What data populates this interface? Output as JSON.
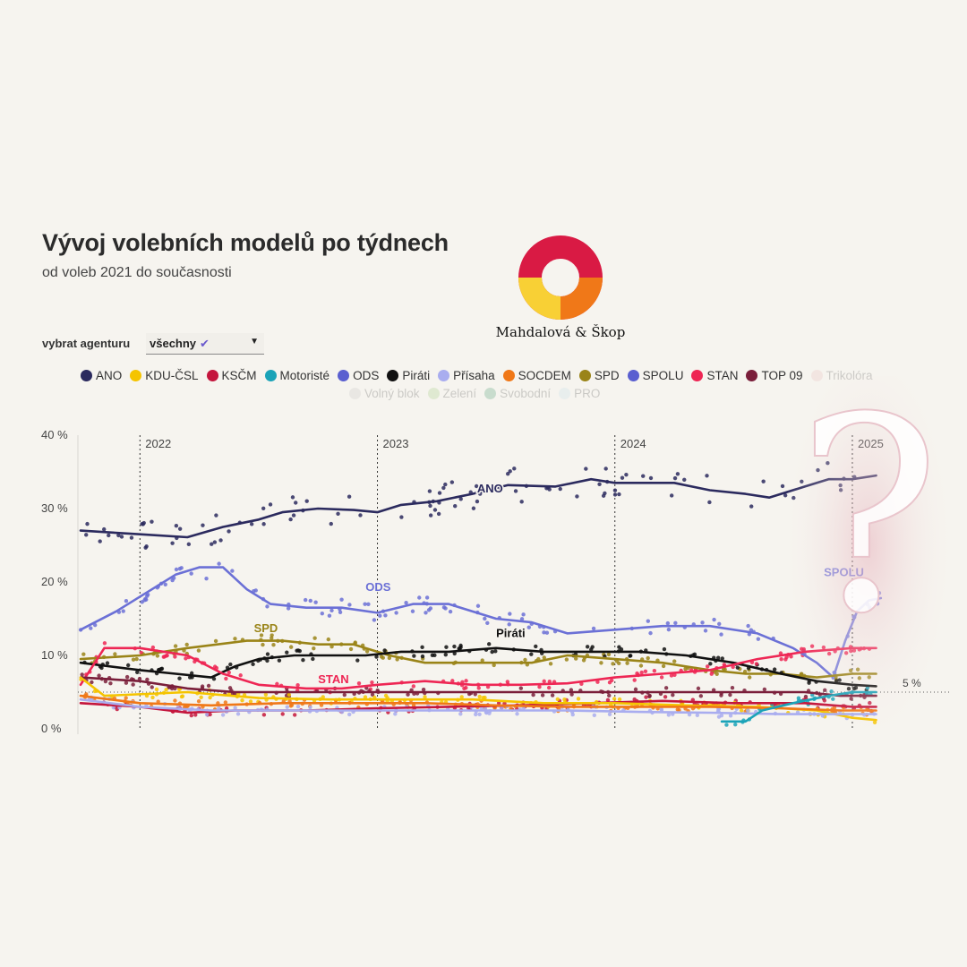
{
  "header": {
    "title": "Vývoj volebních modelů po týdnech",
    "subtitle": "od voleb 2021 do současnosti"
  },
  "brand": {
    "name": "Mahdalová & Škop"
  },
  "filter": {
    "label": "vybrat agenturu",
    "value": "všechny",
    "check_icon": "check-icon"
  },
  "legend": {
    "row1": [
      {
        "name": "ANO",
        "color": "#2b2a5e",
        "active": true
      },
      {
        "name": "KDU-ČSL",
        "color": "#f5c400",
        "active": true
      },
      {
        "name": "KSČM",
        "color": "#c4163d",
        "active": true
      },
      {
        "name": "Motoristé",
        "color": "#1ba3b8",
        "active": true
      },
      {
        "name": "ODS",
        "color": "#5a5fd0",
        "active": true
      },
      {
        "name": "Piráti",
        "color": "#111111",
        "active": true
      },
      {
        "name": "Přísaha",
        "color": "#a9adef",
        "active": true
      },
      {
        "name": "SOCDEM",
        "color": "#f07818",
        "active": true
      },
      {
        "name": "SPD",
        "color": "#9a8418",
        "active": true
      },
      {
        "name": "SPOLU",
        "color": "#5a5fd0",
        "active": true
      },
      {
        "name": "STAN",
        "color": "#ee2654",
        "active": true
      },
      {
        "name": "TOP 09",
        "color": "#7a1e3a",
        "active": true
      },
      {
        "name": "Trikolóra",
        "color": "#e8b4b4",
        "active": false
      }
    ],
    "row2": [
      {
        "name": "Volný blok",
        "color": "#bdbdbd",
        "active": false
      },
      {
        "name": "Zelení",
        "color": "#8fc46a",
        "active": false
      },
      {
        "name": "Svobodní",
        "color": "#2a8a5a",
        "active": false
      },
      {
        "name": "PRO",
        "color": "#b8dcea",
        "active": false
      }
    ]
  },
  "chart_data": {
    "type": "line",
    "x_range": [
      "2021-10-01",
      "2025-03-15"
    ],
    "ylim": [
      0,
      40
    ],
    "y_ticks": [
      "0 %",
      "10 %",
      "20 %",
      "30 %",
      "40 %"
    ],
    "year_markers": [
      {
        "label": "2022",
        "date": "2022-01-01"
      },
      {
        "label": "2023",
        "date": "2023-01-01"
      },
      {
        "label": "2024",
        "date": "2024-01-01"
      },
      {
        "label": "2025",
        "date": "2025-01-01"
      }
    ],
    "threshold": {
      "value": 5,
      "label": "5 %"
    },
    "series": [
      {
        "name": "ANO",
        "color": "#2b2a5e",
        "label": "ANO",
        "label_at": [
          2023.42,
          32.2
        ],
        "points": [
          [
            2021.75,
            27
          ],
          [
            2022.0,
            26.5
          ],
          [
            2022.2,
            26.1
          ],
          [
            2022.35,
            27.5
          ],
          [
            2022.5,
            28.5
          ],
          [
            2022.6,
            29.5
          ],
          [
            2022.75,
            30
          ],
          [
            2022.9,
            29.8
          ],
          [
            2023.0,
            29.5
          ],
          [
            2023.1,
            30.5
          ],
          [
            2023.25,
            31
          ],
          [
            2023.4,
            32
          ],
          [
            2023.55,
            33.2
          ],
          [
            2023.75,
            33
          ],
          [
            2023.9,
            34
          ],
          [
            2024.0,
            33.5
          ],
          [
            2024.25,
            33.5
          ],
          [
            2024.4,
            32.5
          ],
          [
            2024.55,
            32
          ],
          [
            2024.65,
            31.5
          ],
          [
            2024.8,
            33
          ],
          [
            2024.9,
            34
          ],
          [
            2025.0,
            34
          ],
          [
            2025.1,
            34.5
          ]
        ]
      },
      {
        "name": "ODS",
        "color": "#6b70d6",
        "label": "ODS",
        "label_at": [
          2022.95,
          18.8
        ],
        "points": [
          [
            2021.75,
            13.5
          ],
          [
            2021.9,
            16
          ],
          [
            2022.15,
            21
          ],
          [
            2022.25,
            22
          ],
          [
            2022.35,
            22
          ],
          [
            2022.45,
            19
          ],
          [
            2022.55,
            17
          ],
          [
            2022.7,
            16.5
          ],
          [
            2022.85,
            16.5
          ],
          [
            2023.0,
            15.8
          ],
          [
            2023.15,
            17
          ],
          [
            2023.3,
            17
          ],
          [
            2023.5,
            15
          ],
          [
            2023.65,
            14.5
          ],
          [
            2023.8,
            13
          ],
          [
            2024.0,
            13.5
          ],
          [
            2024.2,
            14
          ],
          [
            2024.4,
            14
          ],
          [
            2024.6,
            13
          ],
          [
            2024.75,
            11
          ],
          [
            2024.85,
            9
          ],
          [
            2024.92,
            7
          ]
        ]
      },
      {
        "name": "SPOLU",
        "color": "#7e83dc",
        "label": "SPOLU",
        "label_at": [
          2024.88,
          20.8
        ],
        "points": [
          [
            2024.92,
            7
          ],
          [
            2024.97,
            12
          ],
          [
            2025.02,
            16
          ],
          [
            2025.07,
            17.5
          ],
          [
            2025.12,
            17.8
          ]
        ]
      },
      {
        "name": "SPD",
        "color": "#9a8418",
        "label": "SPD",
        "label_at": [
          2022.48,
          13.2
        ],
        "points": [
          [
            2021.75,
            9.5
          ],
          [
            2022.0,
            10
          ],
          [
            2022.2,
            11
          ],
          [
            2022.45,
            12
          ],
          [
            2022.6,
            12
          ],
          [
            2022.75,
            11.5
          ],
          [
            2022.9,
            11.5
          ],
          [
            2023.05,
            10
          ],
          [
            2023.2,
            9
          ],
          [
            2023.35,
            9
          ],
          [
            2023.5,
            9
          ],
          [
            2023.65,
            9
          ],
          [
            2023.8,
            10
          ],
          [
            2024.0,
            9.5
          ],
          [
            2024.2,
            9
          ],
          [
            2024.4,
            8
          ],
          [
            2024.55,
            7.5
          ],
          [
            2024.7,
            7.5
          ],
          [
            2024.85,
            7
          ],
          [
            2025.0,
            7.5
          ],
          [
            2025.1,
            7.5
          ]
        ]
      },
      {
        "name": "Piráti",
        "color": "#111111",
        "label": "Piráti",
        "label_at": [
          2023.5,
          12.5
        ],
        "points": [
          [
            2021.75,
            9
          ],
          [
            2022.0,
            8
          ],
          [
            2022.15,
            7.5
          ],
          [
            2022.3,
            7
          ],
          [
            2022.4,
            8.5
          ],
          [
            2022.5,
            9.5
          ],
          [
            2022.65,
            10
          ],
          [
            2022.8,
            10
          ],
          [
            2022.95,
            10
          ],
          [
            2023.1,
            10.5
          ],
          [
            2023.3,
            10.5
          ],
          [
            2023.5,
            11
          ],
          [
            2023.7,
            10.5
          ],
          [
            2023.9,
            10.5
          ],
          [
            2024.1,
            10.5
          ],
          [
            2024.3,
            10
          ],
          [
            2024.5,
            9
          ],
          [
            2024.7,
            7.5
          ],
          [
            2024.85,
            6.5
          ],
          [
            2025.0,
            6
          ],
          [
            2025.1,
            5.8
          ]
        ]
      },
      {
        "name": "STAN",
        "color": "#ee2654",
        "label": "STAN",
        "label_at": [
          2022.75,
          6.2
        ],
        "points": [
          [
            2021.75,
            6
          ],
          [
            2021.85,
            11
          ],
          [
            2022.0,
            11
          ],
          [
            2022.2,
            10
          ],
          [
            2022.35,
            7.5
          ],
          [
            2022.5,
            6
          ],
          [
            2022.7,
            5.5
          ],
          [
            2022.85,
            5.5
          ],
          [
            2023.0,
            6
          ],
          [
            2023.2,
            6.5
          ],
          [
            2023.4,
            6
          ],
          [
            2023.6,
            6
          ],
          [
            2023.8,
            6.2
          ],
          [
            2024.0,
            7
          ],
          [
            2024.2,
            7.5
          ],
          [
            2024.4,
            8
          ],
          [
            2024.6,
            9.5
          ],
          [
            2024.8,
            10.5
          ],
          [
            2025.0,
            11
          ],
          [
            2025.1,
            11
          ]
        ]
      },
      {
        "name": "TOP 09",
        "color": "#7a1e3a",
        "points": [
          [
            2021.75,
            7
          ],
          [
            2022.0,
            6.5
          ],
          [
            2022.2,
            5.5
          ],
          [
            2022.4,
            5
          ],
          [
            2022.7,
            5
          ],
          [
            2023.0,
            5
          ],
          [
            2023.3,
            5
          ],
          [
            2023.6,
            5
          ],
          [
            2023.9,
            5
          ],
          [
            2024.2,
            5
          ],
          [
            2024.5,
            5
          ],
          [
            2024.8,
            5
          ],
          [
            2024.95,
            4.5
          ],
          [
            2025.1,
            4.5
          ]
        ]
      },
      {
        "name": "KSČM",
        "color": "#c4163d",
        "points": [
          [
            2021.75,
            3.5
          ],
          [
            2022.0,
            3
          ],
          [
            2022.2,
            2.2
          ],
          [
            2022.4,
            2.5
          ],
          [
            2022.7,
            2.5
          ],
          [
            2023.0,
            2.8
          ],
          [
            2023.3,
            3
          ],
          [
            2023.6,
            3.2
          ],
          [
            2023.9,
            3.5
          ],
          [
            2024.2,
            3.8
          ],
          [
            2024.5,
            3.5
          ],
          [
            2024.8,
            3.5
          ],
          [
            2025.0,
            3
          ],
          [
            2025.1,
            3
          ]
        ]
      },
      {
        "name": "KDU-ČSL",
        "color": "#f5c400",
        "points": [
          [
            2021.75,
            7
          ],
          [
            2021.85,
            4.5
          ],
          [
            2022.2,
            5
          ],
          [
            2022.5,
            4.2
          ],
          [
            2022.8,
            4
          ],
          [
            2023.1,
            4
          ],
          [
            2023.4,
            4
          ],
          [
            2023.7,
            3.5
          ],
          [
            2024.0,
            3.5
          ],
          [
            2024.3,
            3.2
          ],
          [
            2024.6,
            3
          ],
          [
            2024.85,
            2.5
          ],
          [
            2025.0,
            1.5
          ],
          [
            2025.1,
            1.2
          ]
        ]
      },
      {
        "name": "SOCDEM",
        "color": "#f07818",
        "points": [
          [
            2021.75,
            4.5
          ],
          [
            2022.0,
            3.5
          ],
          [
            2022.3,
            3.2
          ],
          [
            2022.6,
            3.5
          ],
          [
            2022.9,
            3.5
          ],
          [
            2023.2,
            3.5
          ],
          [
            2023.5,
            3.2
          ],
          [
            2023.8,
            3
          ],
          [
            2024.1,
            3
          ],
          [
            2024.4,
            3
          ],
          [
            2024.7,
            2.8
          ],
          [
            2024.95,
            2.5
          ],
          [
            2025.1,
            2.5
          ]
        ]
      },
      {
        "name": "Přísaha",
        "color": "#a9adef",
        "points": [
          [
            2021.75,
            4
          ],
          [
            2022.0,
            3
          ],
          [
            2022.3,
            2.5
          ],
          [
            2022.6,
            2.5
          ],
          [
            2022.9,
            2.5
          ],
          [
            2023.2,
            2.5
          ],
          [
            2023.5,
            2.5
          ],
          [
            2023.8,
            2.5
          ],
          [
            2024.1,
            2.3
          ],
          [
            2024.4,
            2.2
          ],
          [
            2024.7,
            2
          ],
          [
            2025.0,
            2
          ],
          [
            2025.1,
            2
          ]
        ]
      },
      {
        "name": "Motoristé",
        "color": "#1ba3b8",
        "points": [
          [
            2024.45,
            1
          ],
          [
            2024.55,
            1
          ],
          [
            2024.62,
            2.5
          ],
          [
            2024.75,
            3.5
          ],
          [
            2024.9,
            4.5
          ],
          [
            2025.0,
            5
          ],
          [
            2025.1,
            5
          ]
        ]
      }
    ]
  }
}
